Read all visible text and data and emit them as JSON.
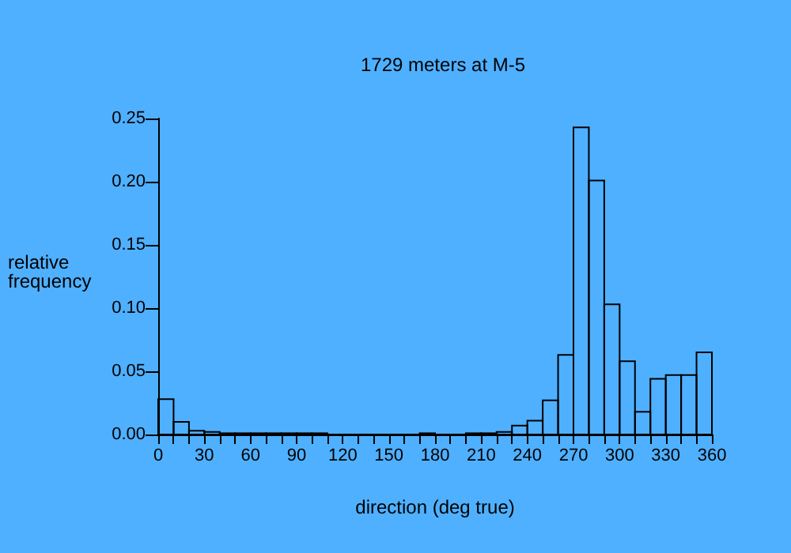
{
  "chart_data": {
    "type": "histogram",
    "title": "1729 meters at M-5",
    "xlabel": "direction (deg true)",
    "ylabel": "relative\nfrequency",
    "bins": [
      0,
      10,
      20,
      30,
      40,
      50,
      60,
      70,
      80,
      90,
      100,
      110,
      120,
      130,
      140,
      150,
      160,
      170,
      180,
      190,
      200,
      210,
      220,
      230,
      240,
      250,
      260,
      270,
      280,
      290,
      300,
      310,
      320,
      330,
      340,
      350,
      360
    ],
    "values": [
      0.028,
      0.01,
      0.003,
      0.002,
      0.001,
      0.001,
      0.001,
      0.001,
      0.001,
      0.001,
      0.001,
      0,
      0,
      0,
      0,
      0,
      0,
      0.001,
      0,
      0,
      0.001,
      0.001,
      0.002,
      0.007,
      0.011,
      0.027,
      0.063,
      0.243,
      0.201,
      0.103,
      0.058,
      0.018,
      0.044,
      0.047,
      0.047,
      0.065
    ],
    "color": "#000000",
    "xlim": [
      0,
      360
    ],
    "xticks": [
      0,
      {
        "value": 10,
        "label": null
      },
      {
        "value": 20,
        "label": null
      },
      30,
      {
        "value": 40,
        "label": null
      },
      {
        "value": 50,
        "label": null
      },
      60,
      {
        "value": 70,
        "label": null
      },
      {
        "value": 80,
        "label": null
      },
      90,
      {
        "value": 100,
        "label": null
      },
      {
        "value": 110,
        "label": null
      },
      120,
      {
        "value": 130,
        "label": null
      },
      {
        "value": 140,
        "label": null
      },
      150,
      {
        "value": 160,
        "label": null
      },
      {
        "value": 170,
        "label": null
      },
      180,
      {
        "value": 190,
        "label": null
      },
      {
        "value": 200,
        "label": null
      },
      210,
      {
        "value": 220,
        "label": null
      },
      {
        "value": 230,
        "label": null
      },
      240,
      {
        "value": 250,
        "label": null
      },
      {
        "value": 260,
        "label": null
      },
      270,
      {
        "value": 280,
        "label": null
      },
      {
        "value": 290,
        "label": null
      },
      300,
      {
        "value": 310,
        "label": null
      },
      {
        "value": 320,
        "label": null
      },
      330,
      {
        "value": 340,
        "label": null
      },
      {
        "value": 350,
        "label": null
      },
      360
    ],
    "ylim": [
      0,
      0.25
    ],
    "yticks": [
      {
        "value": 0,
        "label": "0.00"
      },
      {
        "value": 0.05,
        "label": "0.05"
      },
      {
        "value": 0.1,
        "label": "0.10"
      },
      {
        "value": 0.15,
        "label": "0.15"
      },
      {
        "value": 0.2,
        "label": "0.20"
      },
      {
        "value": 0.25,
        "label": "0.25"
      }
    ],
    "grid": false
  }
}
